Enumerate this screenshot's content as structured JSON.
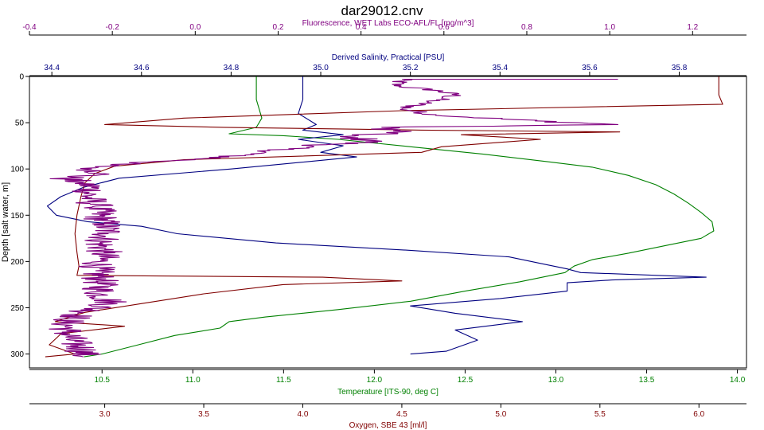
{
  "chart_data": {
    "type": "line",
    "title": "dar29012.cnv",
    "xlabel": "Temperature [ITS-90, deg C]",
    "ylabel": "Depth [salt water, m]",
    "ylim": [
      0,
      315
    ],
    "grid": false,
    "legend": "none",
    "y_axis": {
      "label": "Depth [salt water, m]",
      "ticks": [
        "0",
        "50",
        "100",
        "150",
        "200",
        "250",
        "300"
      ],
      "reversed": true
    },
    "axes": [
      {
        "key": "fluor",
        "label": "Fluorescence, WET Labs ECO-AFL/FL [mg/m^3]",
        "position": "top-outer",
        "color": "#800080",
        "range": [
          -0.4,
          1.33
        ],
        "ticks": [
          "-0.4",
          "-0.2",
          "0.0",
          "0.2",
          "0.4",
          "0.6",
          "0.8",
          "1.0",
          "1.2"
        ]
      },
      {
        "key": "sal",
        "label": "Derived Salinity, Practical [PSU]",
        "position": "top-inner",
        "color": "#000080",
        "range": [
          34.35,
          35.95
        ],
        "ticks": [
          "34.4",
          "34.6",
          "34.8",
          "35.0",
          "35.2",
          "35.4",
          "35.6",
          "35.8"
        ]
      },
      {
        "key": "temp",
        "label": "Temperature [ITS-90, deg C]",
        "position": "bottom-inner",
        "color": "#008000",
        "range": [
          10.1,
          14.05
        ],
        "ticks": [
          "10.5",
          "11.0",
          "11.5",
          "12.0",
          "12.5",
          "13.0",
          "13.5",
          "14.0"
        ]
      },
      {
        "key": "oxy",
        "label": "Oxygen, SBE 43 [ml/l]",
        "position": "bottom-outer",
        "color": "#800000",
        "range": [
          2.62,
          6.24
        ],
        "ticks": [
          "3.0",
          "3.5",
          "4.0",
          "4.5",
          "5.0",
          "5.5",
          "6.0"
        ]
      }
    ],
    "series": [
      {
        "axis": "temp",
        "color": "#008000",
        "points": [
          [
            11.35,
            0
          ],
          [
            11.35,
            25
          ],
          [
            11.38,
            45
          ],
          [
            11.35,
            55
          ],
          [
            11.2,
            62
          ],
          [
            11.5,
            64
          ],
          [
            11.8,
            68
          ],
          [
            12.2,
            76
          ],
          [
            12.6,
            84
          ],
          [
            12.95,
            92
          ],
          [
            13.2,
            98
          ],
          [
            13.4,
            107
          ],
          [
            13.55,
            117
          ],
          [
            13.65,
            127
          ],
          [
            13.73,
            137
          ],
          [
            13.8,
            147
          ],
          [
            13.86,
            157
          ],
          [
            13.87,
            167
          ],
          [
            13.8,
            175
          ],
          [
            13.6,
            183
          ],
          [
            13.4,
            191
          ],
          [
            13.2,
            198
          ],
          [
            13.1,
            205
          ],
          [
            13.05,
            212
          ],
          [
            12.8,
            222
          ],
          [
            12.5,
            232
          ],
          [
            12.2,
            243
          ],
          [
            11.8,
            252
          ],
          [
            11.4,
            260
          ],
          [
            11.2,
            265
          ],
          [
            11.15,
            272
          ],
          [
            10.9,
            280
          ],
          [
            10.7,
            290
          ],
          [
            10.5,
            300
          ],
          [
            10.4,
            303
          ]
        ]
      },
      {
        "axis": "sal",
        "color": "#000080",
        "points": [
          [
            34.96,
            0
          ],
          [
            34.96,
            25
          ],
          [
            34.95,
            40
          ],
          [
            34.99,
            52
          ],
          [
            34.96,
            58
          ],
          [
            35.05,
            63
          ],
          [
            34.95,
            68
          ],
          [
            35.05,
            75
          ],
          [
            35.0,
            82
          ],
          [
            35.08,
            87
          ],
          [
            34.8,
            100
          ],
          [
            34.55,
            110
          ],
          [
            34.47,
            120
          ],
          [
            34.42,
            130
          ],
          [
            34.39,
            140
          ],
          [
            34.41,
            150
          ],
          [
            34.48,
            157
          ],
          [
            34.6,
            162
          ],
          [
            34.68,
            170
          ],
          [
            34.9,
            180
          ],
          [
            35.2,
            188
          ],
          [
            35.42,
            195
          ],
          [
            35.5,
            203
          ],
          [
            35.55,
            208
          ],
          [
            35.58,
            212
          ],
          [
            35.75,
            215
          ],
          [
            35.86,
            217
          ],
          [
            35.65,
            220
          ],
          [
            35.55,
            223
          ],
          [
            35.55,
            232
          ],
          [
            35.4,
            240
          ],
          [
            35.2,
            248
          ],
          [
            35.3,
            256
          ],
          [
            35.45,
            265
          ],
          [
            35.3,
            274
          ],
          [
            35.35,
            285
          ],
          [
            35.28,
            297
          ],
          [
            35.2,
            300
          ]
        ]
      },
      {
        "axis": "oxy",
        "color": "#800000",
        "points": [
          [
            6.1,
            0
          ],
          [
            6.1,
            20
          ],
          [
            6.12,
            30
          ],
          [
            4.5,
            37
          ],
          [
            3.4,
            45
          ],
          [
            3.0,
            52
          ],
          [
            3.6,
            55
          ],
          [
            4.6,
            58
          ],
          [
            5.6,
            60
          ],
          [
            4.8,
            63
          ],
          [
            5.2,
            68
          ],
          [
            4.7,
            76
          ],
          [
            4.6,
            82
          ],
          [
            3.4,
            90
          ],
          [
            3.05,
            97
          ],
          [
            2.95,
            105
          ],
          [
            2.9,
            115
          ],
          [
            2.88,
            130
          ],
          [
            2.86,
            150
          ],
          [
            2.85,
            170
          ],
          [
            2.86,
            190
          ],
          [
            2.87,
            205
          ],
          [
            2.86,
            215
          ],
          [
            4.1,
            217
          ],
          [
            4.5,
            221
          ],
          [
            3.9,
            225
          ],
          [
            3.5,
            235
          ],
          [
            3.2,
            245
          ],
          [
            2.9,
            255
          ],
          [
            2.75,
            265
          ],
          [
            3.1,
            270
          ],
          [
            2.78,
            278
          ],
          [
            2.72,
            290
          ],
          [
            2.85,
            300
          ],
          [
            2.7,
            303
          ]
        ]
      },
      {
        "axis": "fluor",
        "color": "#800080",
        "noisy": true,
        "points": [
          [
            1.02,
            3
          ],
          [
            0.5,
            3
          ],
          [
            0.48,
            10
          ],
          [
            0.58,
            15
          ],
          [
            0.63,
            20
          ],
          [
            0.56,
            28
          ],
          [
            0.5,
            35
          ],
          [
            0.58,
            42
          ],
          [
            0.82,
            48
          ],
          [
            1.02,
            52
          ],
          [
            0.45,
            55
          ],
          [
            0.5,
            60
          ],
          [
            0.35,
            65
          ],
          [
            0.45,
            70
          ],
          [
            0.28,
            75
          ],
          [
            0.18,
            80
          ],
          [
            0.12,
            85
          ],
          [
            0.0,
            90
          ],
          [
            -0.2,
            95
          ],
          [
            -0.25,
            100
          ],
          [
            -0.22,
            105
          ],
          [
            -0.32,
            110
          ],
          [
            -0.27,
            115
          ],
          [
            -0.25,
            120
          ],
          [
            -0.26,
            130
          ],
          [
            -0.24,
            140
          ],
          [
            -0.23,
            150
          ],
          [
            -0.22,
            160
          ],
          [
            -0.21,
            170
          ],
          [
            -0.23,
            180
          ],
          [
            -0.22,
            190
          ],
          [
            -0.23,
            200
          ],
          [
            -0.24,
            210
          ],
          [
            -0.23,
            220
          ],
          [
            -0.23,
            235
          ],
          [
            -0.2,
            245
          ],
          [
            -0.27,
            255
          ],
          [
            -0.31,
            265
          ],
          [
            -0.31,
            275
          ],
          [
            -0.3,
            285
          ],
          [
            -0.27,
            295
          ],
          [
            -0.27,
            303
          ]
        ]
      }
    ]
  }
}
